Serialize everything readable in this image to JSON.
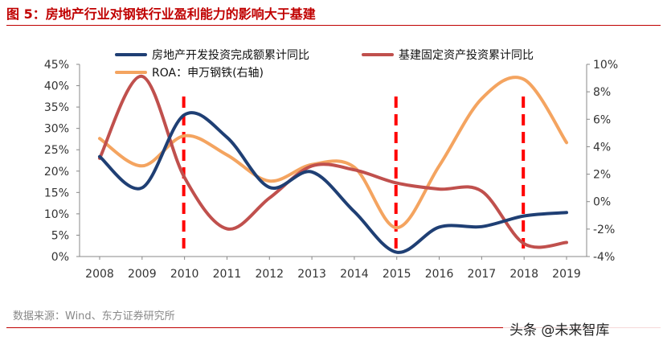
{
  "figure_title": "图 5：房地产行业对钢铁行业盈利能力的影响大于基建",
  "source_note": "数据来源：Wind、东方证券研究所",
  "watermark": "头条 @未来智库",
  "colors": {
    "title_red": "#c00000",
    "real_estate": "#1f3f74",
    "infrastructure": "#c0504d",
    "roa": "#f4a460",
    "markers": "#ff0000"
  },
  "chart_data": {
    "type": "line",
    "title": "",
    "x": [
      2008,
      2009,
      2010,
      2011,
      2012,
      2013,
      2014,
      2015,
      2016,
      2017,
      2018,
      2019
    ],
    "y_left": {
      "ticks": [
        "0%",
        "5%",
        "10%",
        "15%",
        "20%",
        "25%",
        "30%",
        "35%",
        "40%",
        "45%"
      ],
      "lim": [
        0,
        45
      ],
      "unit": "%"
    },
    "y_right": {
      "ticks": [
        "-4%",
        "-2%",
        "0%",
        "2%",
        "4%",
        "6%",
        "8%",
        "10%"
      ],
      "lim": [
        -4,
        10
      ],
      "unit": "%"
    },
    "series": [
      {
        "name": "房地产开发投资完成额累计同比",
        "axis": "left",
        "values": [
          23.4,
          16.1,
          33.2,
          27.9,
          16.2,
          19.8,
          10.5,
          1.0,
          6.9,
          7.0,
          9.5,
          10.3
        ]
      },
      {
        "name": "基建固定资产投资累计同比",
        "axis": "left",
        "values": [
          23.0,
          42.2,
          18.5,
          6.5,
          13.7,
          21.2,
          20.3,
          17.2,
          15.8,
          15.3,
          3.0,
          3.3
        ]
      },
      {
        "name": "ROA：申万钢铁(右轴)",
        "axis": "right",
        "values": [
          4.6,
          2.6,
          4.8,
          3.4,
          1.5,
          2.7,
          2.5,
          -1.9,
          2.6,
          7.5,
          8.9,
          4.3
        ]
      }
    ],
    "markers": [
      2010,
      2015,
      2018
    ],
    "grid": false,
    "legend": "top"
  }
}
